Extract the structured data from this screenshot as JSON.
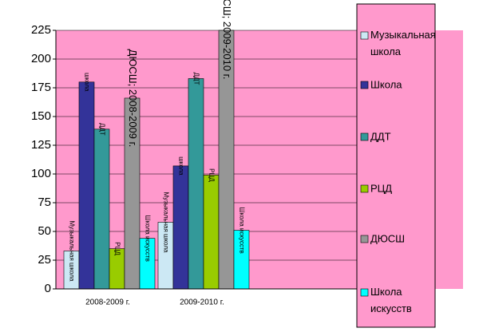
{
  "chart_data": {
    "type": "bar",
    "categories": [
      "2008-2009 г.",
      "2009-2010 г.",
      null
    ],
    "series": [
      {
        "name": "Музыкальная школа",
        "color": "#cce8f4",
        "values": [
          33,
          58,
          null
        ],
        "value_labels": [
          "Музыкальная школа",
          "Музыкальная школа",
          null
        ]
      },
      {
        "name": "Школа",
        "color": "#333399",
        "values": [
          180,
          107,
          null
        ],
        "value_labels": [
          "школа",
          "школа",
          null
        ]
      },
      {
        "name": "ДДТ",
        "color": "#339999",
        "values": [
          139,
          183,
          null
        ],
        "value_labels": [
          "ДДТ",
          "ДДТ",
          null
        ]
      },
      {
        "name": "РЦД",
        "color": "#99cc00",
        "values": [
          35,
          99,
          null
        ],
        "value_labels": [
          "РЦД",
          "РЦД",
          null
        ]
      },
      {
        "name": "ДЮСШ",
        "color": "#969696",
        "values": [
          166,
          225,
          null
        ],
        "value_labels": [
          "ДЮСШ; 2008-2009 г.",
          "ДЮСШ; 2009-2010 г.",
          null
        ]
      },
      {
        "name": "Школа искусств",
        "color": "#00ffff",
        "values": [
          44,
          51,
          null
        ],
        "value_labels": [
          "Школа искусств",
          "Школа искусств",
          null
        ]
      }
    ],
    "ylim": [
      0,
      225
    ],
    "yticks": [
      0,
      25,
      50,
      75,
      100,
      125,
      150,
      175,
      200,
      225
    ],
    "grid": true
  }
}
